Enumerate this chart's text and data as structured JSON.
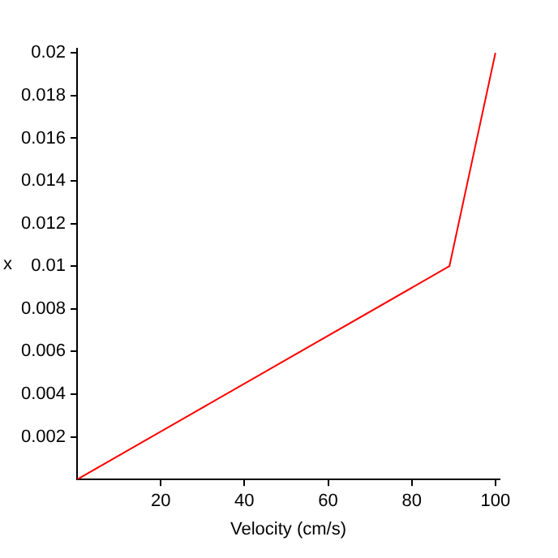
{
  "chart_data": {
    "type": "line",
    "xlabel": "Velocity (cm/s)",
    "ylabel": "x",
    "x": [
      0,
      89,
      100
    ],
    "series": [
      {
        "color": "#ff0000",
        "values": [
          0,
          0.01,
          0.02
        ]
      }
    ],
    "xlim": [
      0,
      101
    ],
    "ylim": [
      0,
      0.0202
    ],
    "xticks": [
      20,
      40,
      60,
      80,
      100
    ],
    "yticks": [
      0.002,
      0.004,
      0.006,
      0.008,
      0.01,
      0.012,
      0.014,
      0.016,
      0.018,
      0.02
    ],
    "grid": false,
    "legend": false,
    "marker": "none",
    "line_style": "solid"
  }
}
